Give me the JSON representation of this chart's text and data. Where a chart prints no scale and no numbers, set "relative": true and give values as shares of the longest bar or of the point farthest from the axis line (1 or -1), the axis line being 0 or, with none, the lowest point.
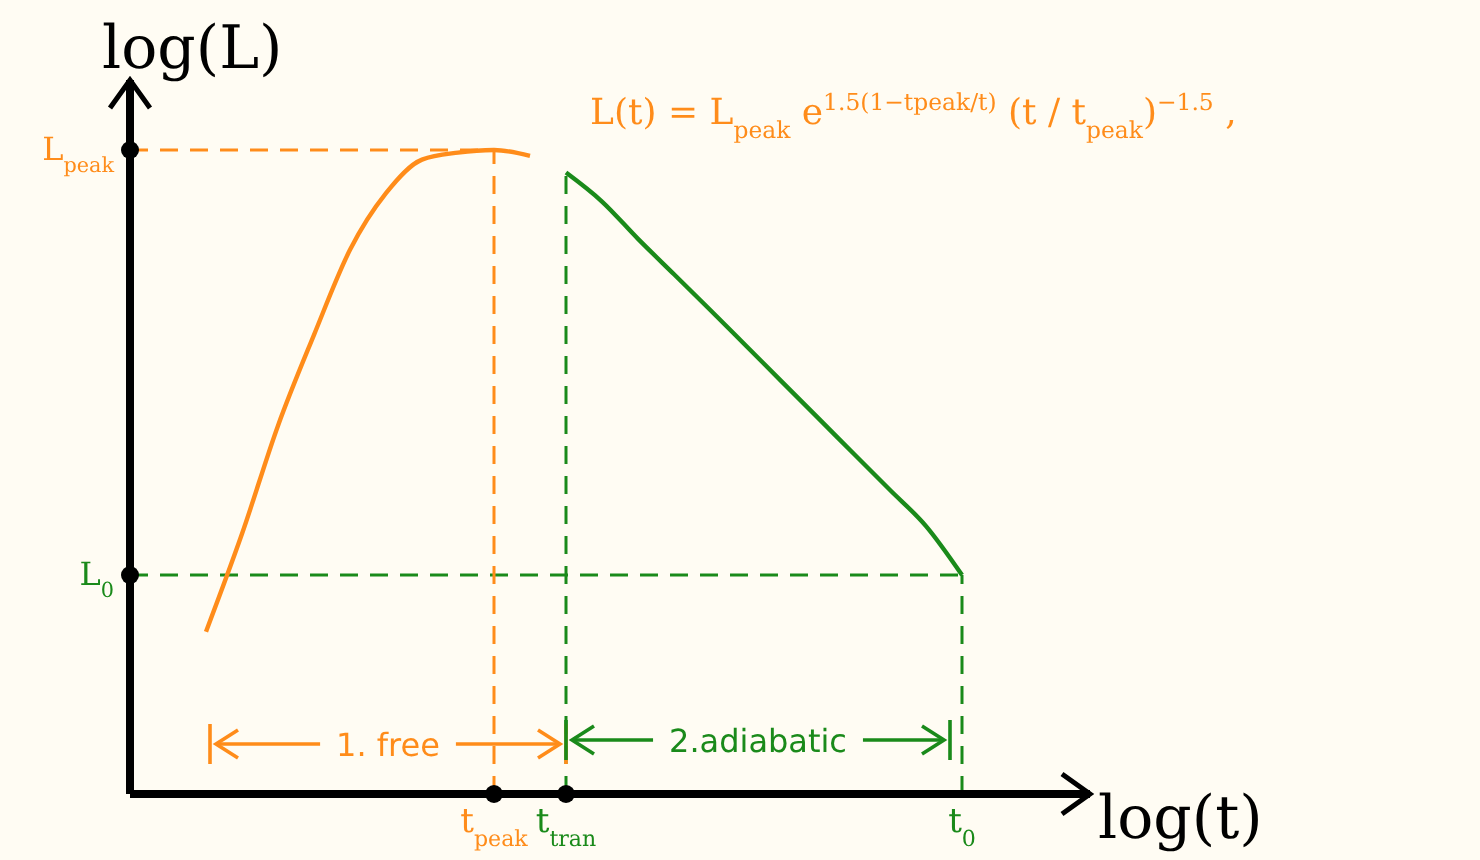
{
  "chart_data": {
    "type": "line",
    "relative": true,
    "xlabel": "log(t)",
    "ylabel": "log(L)",
    "categories": [
      null,
      null,
      null,
      null,
      null,
      null,
      null,
      null,
      null,
      null,
      "t$_{peak}$",
      null,
      "t$_{tran}$",
      null,
      null,
      null,
      null,
      null,
      null,
      null,
      null,
      null,
      null,
      "t$_{0}$",
      null,
      null,
      null
    ],
    "series": [
      {
        "color": "#ff8c1a",
        "values": [
          null,
          null,
          0.252,
          0.404,
          0.572,
          0.713,
          0.845,
          0.933,
          0.985,
          0.996,
          1,
          0.991,
          null,
          null,
          null,
          null,
          null,
          null,
          null,
          null,
          null,
          null,
          null,
          null,
          null,
          null,
          null
        ]
      },
      {
        "color": "#1a8a1a",
        "values": [
          null,
          null,
          null,
          null,
          null,
          null,
          null,
          null,
          null,
          null,
          null,
          null,
          0.965,
          0.92,
          0.862,
          0.807,
          0.752,
          0.696,
          0.64,
          0.584,
          0.528,
          0.472,
          0.416,
          0.34,
          null,
          null,
          null
        ]
      }
    ],
    "ref_lines": [
      {
        "axis": "y",
        "value": 1,
        "label": "L$_{peak}$",
        "color": "#ff8c1a",
        "line_style": "dashed"
      },
      {
        "axis": "y",
        "value": 0.34,
        "label": "L$_{0}$",
        "color": "#1a8a1a",
        "line_style": "dashed"
      },
      {
        "axis": "x",
        "value": "t$_{peak}$",
        "color": "#ff8c1a",
        "line_style": "dashed"
      },
      {
        "axis": "x",
        "value": "t$_{tran}$",
        "color": "#1a8a1a",
        "line_style": "dashed"
      },
      {
        "axis": "x",
        "value": "t$_{0}$",
        "color": "#1a8a1a",
        "line_style": "dashed"
      }
    ],
    "annotations": [
      "L(t) = L$_{peak}$ e$^{1.5(1−tpeak/t)}$ (t / t$_{peak}$)$^{−1.5}$ ,",
      "1. free",
      "2.adiabatic"
    ],
    "grid": false,
    "line_style": "solid",
    "marker": "none"
  }
}
